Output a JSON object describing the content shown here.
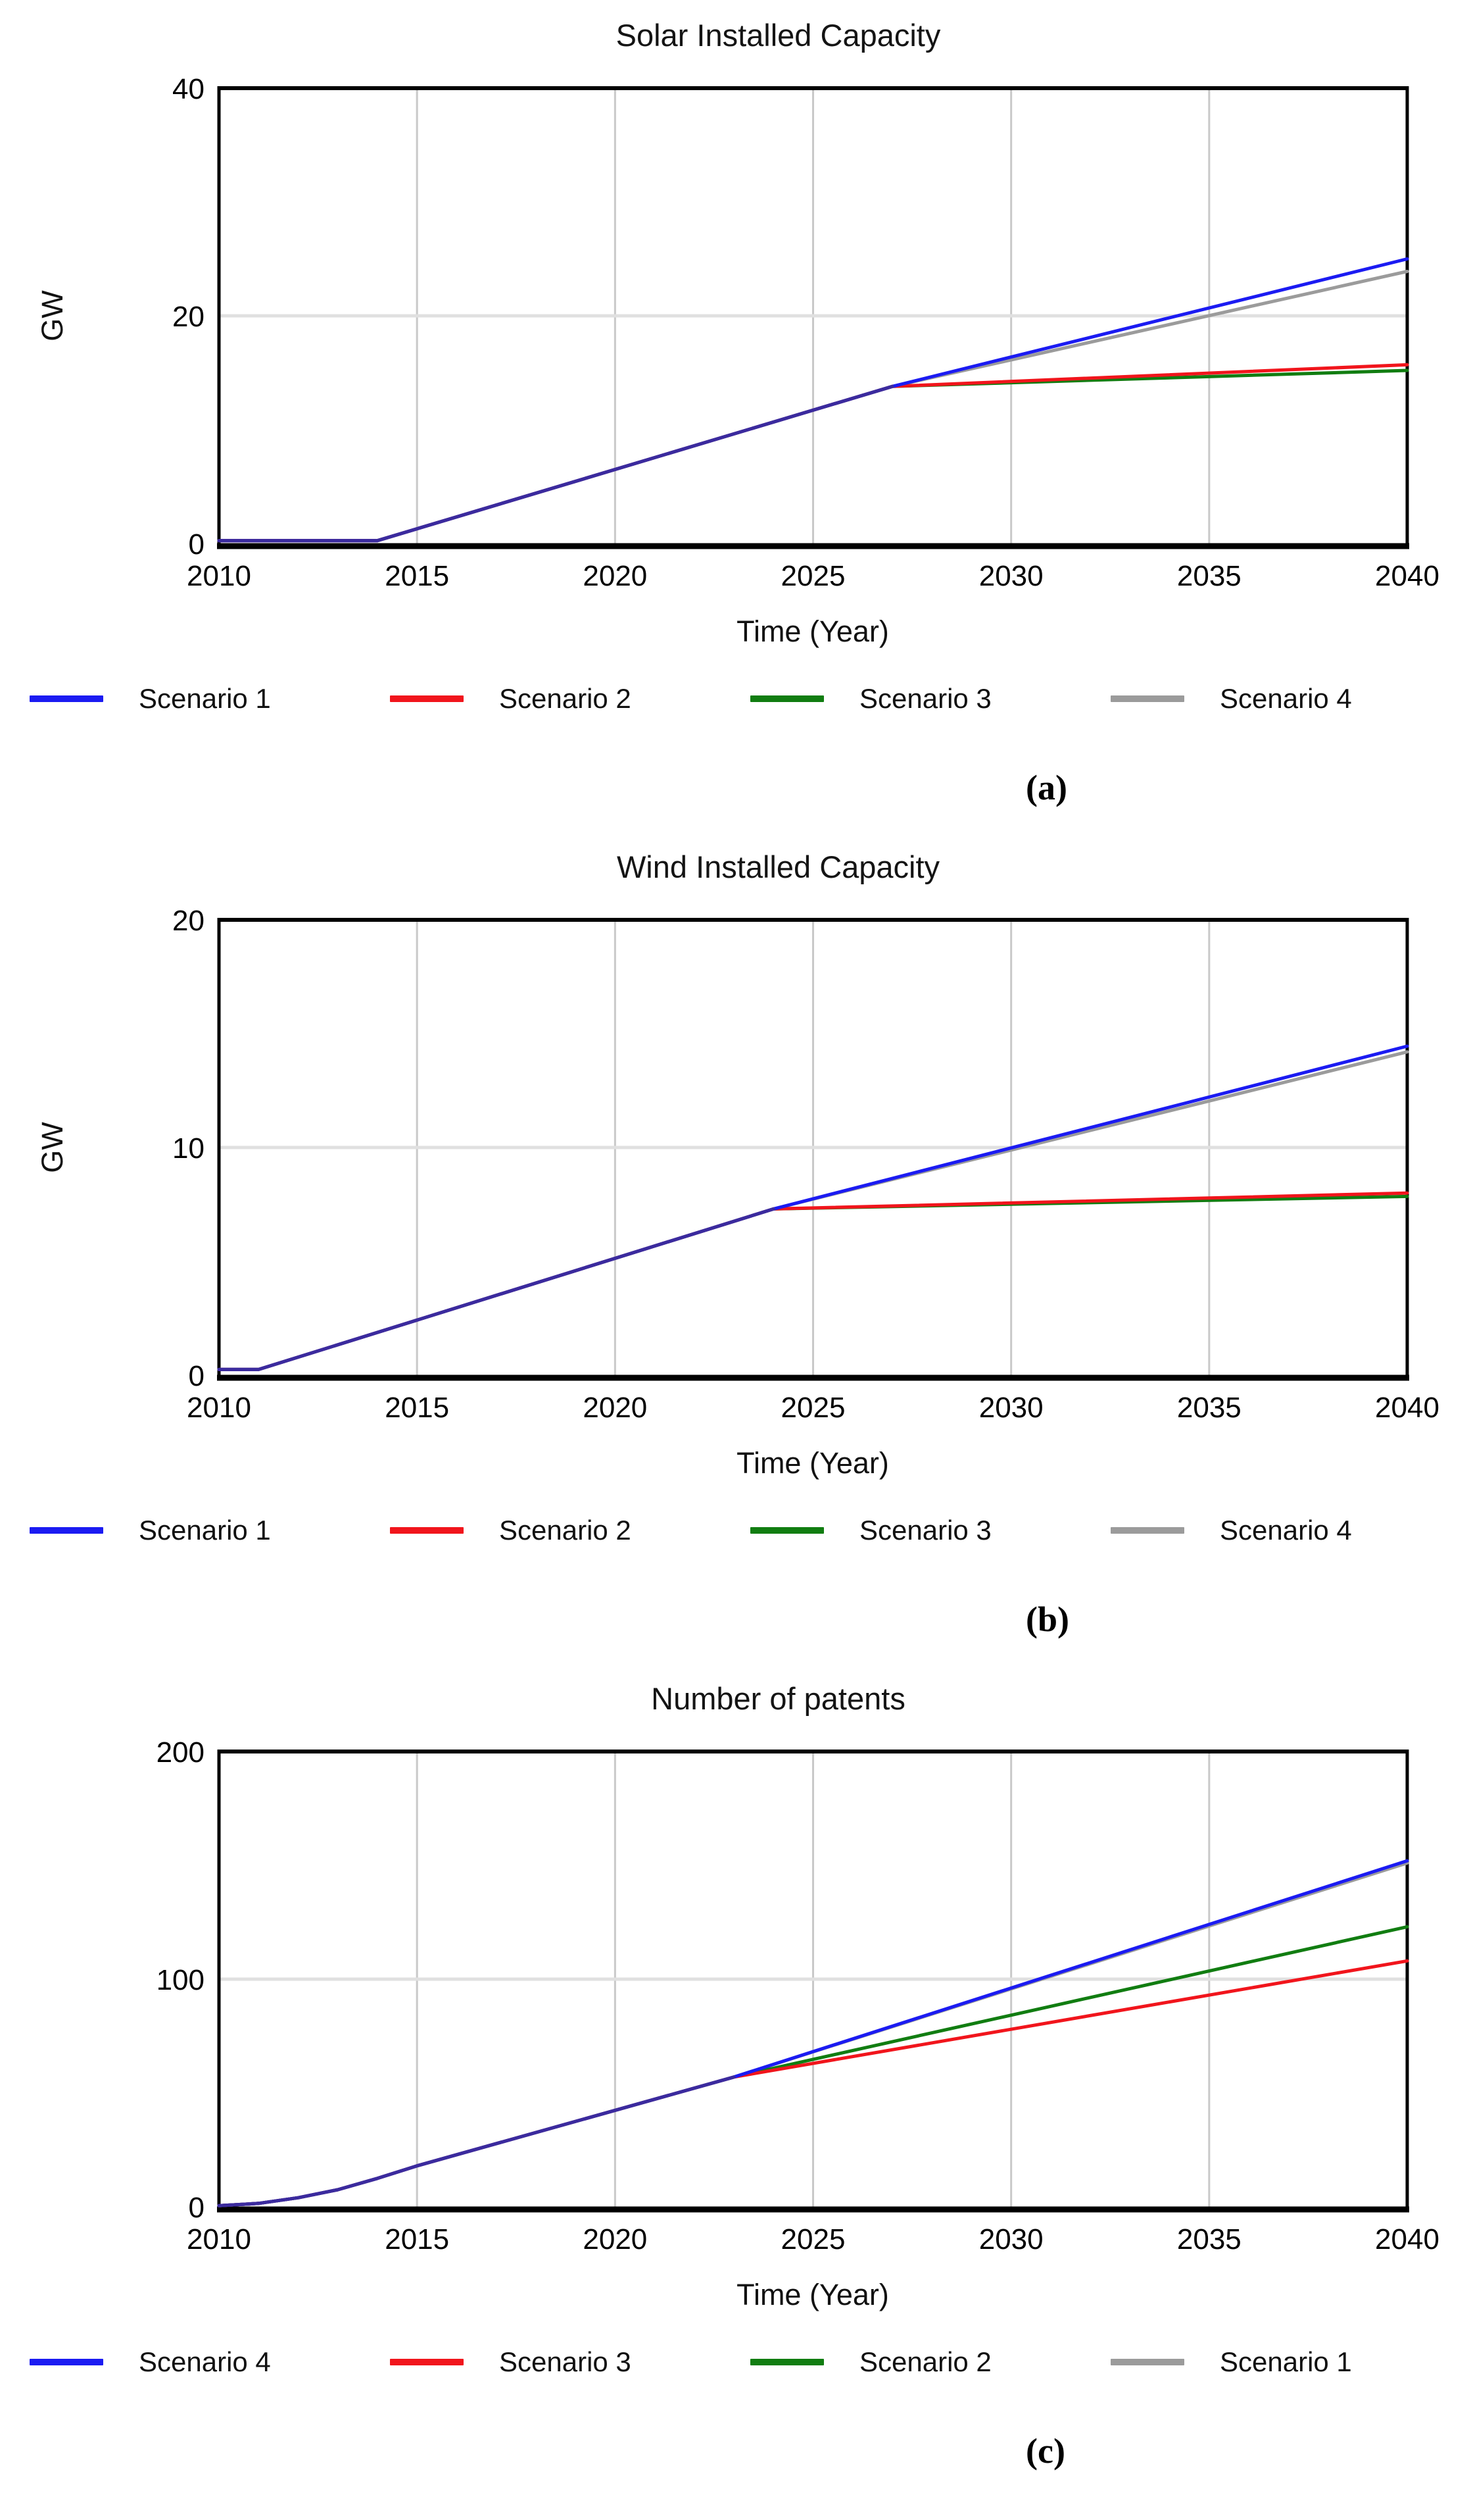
{
  "colors": {
    "blue": "#1b1bf2",
    "red": "#f1151c",
    "green": "#117d11",
    "gray": "#9b9b9b",
    "overlap": "#3b2b9e",
    "grid_vertical": "#c9c9c9",
    "grid_horizontal": "#e0e0e0",
    "frame": "#000000"
  },
  "chart_data": [
    {
      "type": "line",
      "title": "Solar Installed Capacity",
      "ylabel": "GW",
      "xlabel": "Time (Year)",
      "sublabel": "(a)",
      "xlim": [
        2010,
        2040
      ],
      "ylim": [
        0,
        40
      ],
      "xticks": [
        2010,
        2015,
        2020,
        2025,
        2030,
        2035,
        2040
      ],
      "yticks": [
        0,
        20,
        40
      ],
      "grid_x_years": [
        2015,
        2020,
        2025,
        2030,
        2035
      ],
      "grid_y_values": [
        20
      ],
      "grid": "on",
      "legend_position": "bottom",
      "series": [
        {
          "name": "Scenario 4",
          "color": "gray",
          "points": [
            [
              2010,
              0.25
            ],
            [
              2014,
              0.25
            ],
            [
              2027,
              13.8
            ],
            [
              2040,
              23.9
            ]
          ]
        },
        {
          "name": "Scenario 3",
          "color": "green",
          "points": [
            [
              2010,
              0.25
            ],
            [
              2014,
              0.25
            ],
            [
              2027,
              13.8
            ],
            [
              2040,
              15.2
            ]
          ]
        },
        {
          "name": "Scenario 2",
          "color": "red",
          "points": [
            [
              2010,
              0.25
            ],
            [
              2014,
              0.25
            ],
            [
              2027,
              13.8
            ],
            [
              2040,
              15.7
            ]
          ]
        },
        {
          "name": "Scenario 1",
          "color": "blue",
          "points": [
            [
              2010,
              0.25
            ],
            [
              2014,
              0.25
            ],
            [
              2027,
              13.8
            ],
            [
              2040,
              25.0
            ]
          ]
        },
        {
          "name": "common-overlap",
          "color": "overlap",
          "points": [
            [
              2010,
              0.25
            ],
            [
              2014,
              0.25
            ],
            [
              2027,
              13.8
            ]
          ]
        }
      ],
      "legend": [
        {
          "label": "Scenario 1",
          "color": "blue"
        },
        {
          "label": "Scenario 2",
          "color": "red"
        },
        {
          "label": "Scenario 3",
          "color": "green"
        },
        {
          "label": "Scenario 4",
          "color": "gray"
        }
      ]
    },
    {
      "type": "line",
      "title": "Wind Installed Capacity",
      "ylabel": "GW",
      "xlabel": "Time (Year)",
      "sublabel": "(b)",
      "xlim": [
        2010,
        2040
      ],
      "ylim": [
        0,
        20
      ],
      "xticks": [
        2010,
        2015,
        2020,
        2025,
        2030,
        2035,
        2040
      ],
      "yticks": [
        0,
        10,
        20
      ],
      "grid_x_years": [
        2015,
        2020,
        2025,
        2030,
        2035
      ],
      "grid_y_values": [
        10
      ],
      "grid": "on",
      "legend_position": "bottom",
      "series": [
        {
          "name": "Scenario 4",
          "color": "gray",
          "points": [
            [
              2010,
              0.25
            ],
            [
              2011,
              0.25
            ],
            [
              2024,
              7.3
            ],
            [
              2040,
              14.2
            ]
          ]
        },
        {
          "name": "Scenario 3",
          "color": "green",
          "points": [
            [
              2010,
              0.25
            ],
            [
              2011,
              0.25
            ],
            [
              2024,
              7.3
            ],
            [
              2040,
              7.85
            ]
          ]
        },
        {
          "name": "Scenario 2",
          "color": "red",
          "points": [
            [
              2010,
              0.25
            ],
            [
              2011,
              0.25
            ],
            [
              2024,
              7.3
            ],
            [
              2040,
              8.0
            ]
          ]
        },
        {
          "name": "Scenario 1",
          "color": "blue",
          "points": [
            [
              2010,
              0.25
            ],
            [
              2011,
              0.25
            ],
            [
              2024,
              7.3
            ],
            [
              2040,
              14.45
            ]
          ]
        },
        {
          "name": "common-overlap",
          "color": "overlap",
          "points": [
            [
              2010,
              0.25
            ],
            [
              2011,
              0.25
            ],
            [
              2024,
              7.3
            ]
          ]
        }
      ],
      "legend": [
        {
          "label": "Scenario 1",
          "color": "blue"
        },
        {
          "label": "Scenario 2",
          "color": "red"
        },
        {
          "label": "Scenario 3",
          "color": "green"
        },
        {
          "label": "Scenario 4",
          "color": "gray"
        }
      ]
    },
    {
      "type": "line",
      "title": "Number of patents",
      "ylabel": "",
      "xlabel": "Time (Year)",
      "sublabel": "(c)",
      "xlim": [
        2010,
        2040
      ],
      "ylim": [
        0,
        200
      ],
      "xticks": [
        2010,
        2015,
        2020,
        2025,
        2030,
        2035,
        2040
      ],
      "yticks": [
        0,
        100,
        200
      ],
      "grid_x_years": [
        2015,
        2020,
        2025,
        2030,
        2035
      ],
      "grid_y_values": [
        100
      ],
      "grid": "on",
      "legend_position": "bottom",
      "series": [
        {
          "name": "Scenario 1",
          "color": "gray",
          "points": [
            [
              2010,
              0.5
            ],
            [
              2011,
              1.5
            ],
            [
              2012,
              4
            ],
            [
              2013,
              7.5
            ],
            [
              2014,
              12.5
            ],
            [
              2015,
              18
            ],
            [
              2023,
              57
            ],
            [
              2040,
              151
            ]
          ]
        },
        {
          "name": "Scenario 2",
          "color": "green",
          "points": [
            [
              2010,
              0.5
            ],
            [
              2011,
              1.5
            ],
            [
              2012,
              4
            ],
            [
              2013,
              7.5
            ],
            [
              2014,
              12.5
            ],
            [
              2015,
              18
            ],
            [
              2023,
              57
            ],
            [
              2040,
              123
            ]
          ]
        },
        {
          "name": "Scenario 3",
          "color": "red",
          "points": [
            [
              2010,
              0.5
            ],
            [
              2011,
              1.5
            ],
            [
              2012,
              4
            ],
            [
              2013,
              7.5
            ],
            [
              2014,
              12.5
            ],
            [
              2015,
              18
            ],
            [
              2023,
              57
            ],
            [
              2040,
              108
            ]
          ]
        },
        {
          "name": "Scenario 4",
          "color": "blue",
          "points": [
            [
              2010,
              0.5
            ],
            [
              2011,
              1.5
            ],
            [
              2012,
              4
            ],
            [
              2013,
              7.5
            ],
            [
              2014,
              12.5
            ],
            [
              2015,
              18
            ],
            [
              2023,
              57
            ],
            [
              2040,
              152
            ]
          ]
        },
        {
          "name": "common-overlap",
          "color": "overlap",
          "points": [
            [
              2010,
              0.5
            ],
            [
              2011,
              1.5
            ],
            [
              2012,
              4
            ],
            [
              2013,
              7.5
            ],
            [
              2014,
              12.5
            ],
            [
              2015,
              18
            ],
            [
              2023,
              57
            ]
          ]
        }
      ],
      "legend": [
        {
          "label": "Scenario 4",
          "color": "blue"
        },
        {
          "label": "Scenario 3",
          "color": "red"
        },
        {
          "label": "Scenario 2",
          "color": "green"
        },
        {
          "label": "Scenario 1",
          "color": "gray"
        }
      ]
    }
  ]
}
